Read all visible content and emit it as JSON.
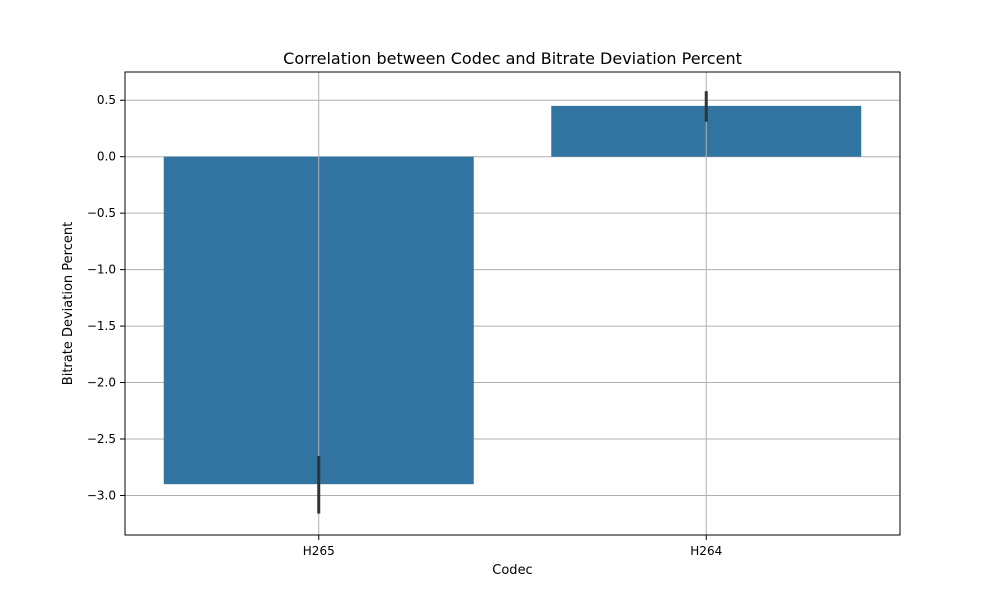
{
  "chart_data": {
    "type": "bar",
    "title": "Correlation between Codec and Bitrate Deviation Percent",
    "xlabel": "Codec",
    "ylabel": "Bitrate Deviation Percent",
    "categories": [
      "H265",
      "H264"
    ],
    "values": [
      -2.9,
      0.45
    ],
    "error_bars": [
      {
        "low": -3.16,
        "high": -2.65
      },
      {
        "low": 0.31,
        "high": 0.58
      }
    ],
    "ylim": [
      -3.35,
      0.75
    ],
    "yticks": [
      0.5,
      0.0,
      -0.5,
      -1.0,
      -1.5,
      -2.0,
      -2.5,
      -3.0
    ],
    "ytick_labels": [
      "0.5",
      "0.0",
      "−0.5",
      "−1.0",
      "−1.5",
      "−2.0",
      "−2.5",
      "−3.0"
    ],
    "grid": true,
    "colors": {
      "bar": "#3274a1",
      "error_bar": "#333333",
      "grid": "#b0b0b0",
      "axes": "#000000"
    }
  }
}
